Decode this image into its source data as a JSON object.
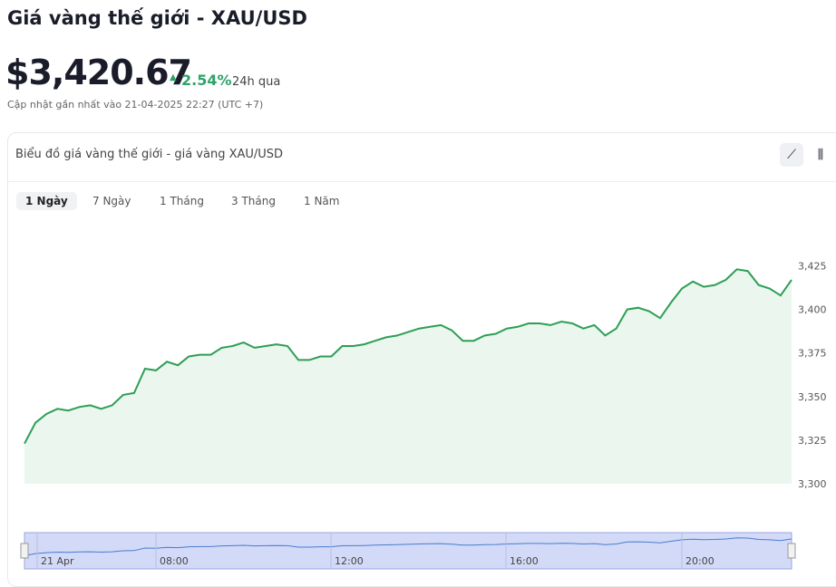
{
  "header": {
    "title": "Giá vàng thế giới - XAU/USD",
    "price": "$3,420.67",
    "change": "2.54%",
    "change_period": "24h qua",
    "updated": "Cập nhật gần nhất vào 21-04-2025 22:27 (UTC +7)"
  },
  "card": {
    "title": "Biểu đồ giá vàng thế giới - giá vàng XAU/USD",
    "tabs": [
      "1 Ngày",
      "7 Ngày",
      "1 Tháng",
      "3 Tháng",
      "1 Năm"
    ]
  },
  "chart_data": {
    "type": "line",
    "color": "#2e9e55",
    "ylim": [
      3300,
      3432
    ],
    "yticks": [
      {
        "value": 3300,
        "label": "3,300"
      },
      {
        "value": 3325,
        "label": "3,325"
      },
      {
        "value": 3350,
        "label": "3,350"
      },
      {
        "value": 3375,
        "label": "3,375"
      },
      {
        "value": 3400,
        "label": "3,400"
      },
      {
        "value": 3425,
        "label": "3,425"
      }
    ],
    "values": [
      3323,
      3335,
      3340,
      3343,
      3342,
      3344,
      3345,
      3343,
      3345,
      3351,
      3352,
      3366,
      3365,
      3370,
      3368,
      3373,
      3374,
      3374,
      3378,
      3379,
      3381,
      3378,
      3379,
      3380,
      3379,
      3371,
      3371,
      3373,
      3373,
      3379,
      3379,
      3380,
      3382,
      3384,
      3385,
      3387,
      3389,
      3390,
      3391,
      3388,
      3382,
      3382,
      3385,
      3386,
      3389,
      3390,
      3392,
      3392,
      3391,
      3393,
      3392,
      3389,
      3391,
      3385,
      3389,
      3400,
      3401,
      3399,
      3395,
      3404,
      3412,
      3416,
      3413,
      3414,
      3417,
      3423,
      3422,
      3414,
      3412,
      3408,
      3417
    ],
    "navigator_labels": [
      "21 Apr",
      "08:00",
      "12:00",
      "16:00",
      "20:00"
    ]
  }
}
